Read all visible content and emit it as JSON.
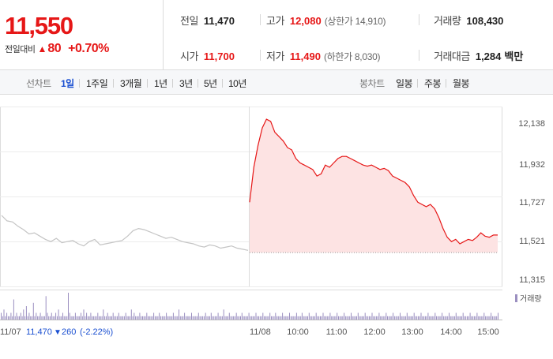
{
  "quote": {
    "price": "11,550",
    "change_label": "전일대비",
    "change_icon": "up-triangle-icon",
    "change_value": "80",
    "change_pct": "+0.70%"
  },
  "stats": {
    "prev_close": {
      "label": "전일",
      "value": "11,470"
    },
    "high": {
      "label": "고가",
      "value": "12,080",
      "sub": "(상한가 14,910)"
    },
    "volume": {
      "label": "거래량",
      "value": "108,430"
    },
    "open": {
      "label": "시가",
      "value": "11,700"
    },
    "low": {
      "label": "저가",
      "value": "11,490",
      "sub": "(하한가 8,030)"
    },
    "trade_amount": {
      "label": "거래대금",
      "value": "1,284",
      "unit": "백만"
    }
  },
  "toolbar": {
    "line_chart_label": "선차트",
    "periods": [
      "1일",
      "1주일",
      "3개월",
      "1년",
      "3년",
      "5년",
      "10년"
    ],
    "active_period": "1일",
    "candle_chart_label": "봉차트",
    "candles": [
      "일봉",
      "주봉",
      "월봉"
    ]
  },
  "colors": {
    "up": "#e61717",
    "down": "#1a4fd1",
    "prev_day_line": "#c4c4c4",
    "volume": "#9b8fc0",
    "fill": "#fde3e3"
  },
  "chart_data": {
    "type": "line",
    "y_ticks": [
      "12,138",
      "11,932",
      "11,727",
      "11,521",
      "11,315"
    ],
    "ylim": [
      11315,
      12138
    ],
    "grid": true,
    "prev_day": {
      "date": "11/07",
      "close": "11,470",
      "change_icon": "down-triangle-icon",
      "change": "260",
      "change_pct": "(-2.22%)",
      "values": [
        11640,
        11615,
        11610,
        11590,
        11575,
        11555,
        11560,
        11545,
        11530,
        11520,
        11535,
        11515,
        11520,
        11525,
        11510,
        11500,
        11520,
        11530,
        11505,
        11510,
        11515,
        11520,
        11525,
        11545,
        11570,
        11580,
        11575,
        11565,
        11555,
        11545,
        11535,
        11540,
        11530,
        11520,
        11515,
        11510,
        11500,
        11495,
        11505,
        11500,
        11490,
        11495,
        11500,
        11490,
        11485,
        11480
      ]
    },
    "today": {
      "date": "11/08",
      "x_labels": [
        "10:00",
        "11:00",
        "12:00",
        "13:00",
        "14:00",
        "15:00"
      ],
      "values": [
        11700,
        11860,
        11960,
        12040,
        12080,
        12070,
        12020,
        12000,
        11980,
        11950,
        11940,
        11900,
        11880,
        11870,
        11860,
        11850,
        11820,
        11830,
        11870,
        11860,
        11880,
        11900,
        11910,
        11910,
        11900,
        11890,
        11880,
        11870,
        11865,
        11870,
        11860,
        11850,
        11855,
        11845,
        11820,
        11810,
        11800,
        11790,
        11770,
        11730,
        11700,
        11690,
        11680,
        11690,
        11670,
        11630,
        11580,
        11540,
        11520,
        11530,
        11510,
        11520,
        11530,
        11525,
        11540,
        11560,
        11545,
        11540,
        11550,
        11550
      ],
      "baseline": 11470
    },
    "volume_label": "거래량",
    "volume": [
      2,
      1,
      3,
      1,
      2,
      1,
      1,
      2,
      1,
      6,
      1,
      2,
      1,
      1,
      2,
      1,
      3,
      1,
      4,
      1,
      2,
      1,
      1,
      5,
      1,
      2,
      1,
      1,
      2,
      1,
      1,
      1,
      7,
      2,
      1,
      1,
      2,
      1,
      1,
      2,
      1,
      3,
      1,
      1,
      2,
      1,
      1,
      1,
      8,
      2,
      1,
      1,
      1,
      2,
      1,
      1,
      1,
      2,
      1,
      3,
      1,
      2,
      1,
      1,
      2,
      1,
      1,
      1,
      1,
      2,
      1,
      1,
      1,
      3,
      1,
      1,
      2,
      1,
      1,
      1,
      2,
      1,
      1,
      1,
      2,
      1,
      1,
      1,
      1,
      2,
      1,
      1,
      1,
      3,
      1,
      2,
      1,
      1,
      1,
      2,
      1,
      1,
      1,
      1,
      2,
      1,
      1,
      1,
      1,
      2,
      1,
      1,
      1,
      2,
      1,
      1,
      1,
      1,
      2,
      1,
      1,
      1,
      1,
      2,
      1,
      1,
      1,
      3,
      1,
      1,
      1,
      2,
      1,
      1,
      1,
      1,
      2,
      1,
      1,
      1,
      1,
      2,
      1,
      1,
      1,
      1,
      2,
      1,
      1,
      1,
      2,
      1,
      1,
      1,
      1,
      2,
      1,
      1,
      1,
      3,
      1,
      1,
      1,
      2,
      1,
      1,
      1,
      1,
      2,
      1,
      1,
      1,
      2,
      1,
      1,
      1,
      1,
      2,
      1,
      1,
      1,
      1,
      2,
      1,
      1,
      1,
      1,
      2,
      1,
      1,
      1,
      1,
      2,
      1,
      1,
      1,
      2,
      1,
      1,
      1,
      1,
      2,
      1,
      1,
      1,
      1,
      2,
      1,
      1,
      1,
      1,
      2,
      1,
      1,
      1,
      2,
      1,
      1,
      1,
      1,
      2,
      1,
      1,
      1,
      1,
      2,
      1,
      1,
      1,
      1,
      2,
      1,
      1,
      1,
      1,
      2,
      1,
      1,
      1,
      1,
      2,
      1,
      1,
      1,
      1,
      2,
      1,
      1,
      1,
      1,
      2,
      1,
      1,
      1,
      1,
      2,
      1,
      1,
      1,
      1,
      2,
      1,
      1,
      1,
      1,
      2,
      1,
      1,
      1,
      1,
      2,
      1,
      1,
      1,
      1,
      2,
      1,
      1,
      1,
      1,
      2,
      1,
      1,
      1,
      1,
      2,
      1,
      1,
      1,
      1,
      2,
      1,
      1,
      1,
      1,
      2,
      1,
      1,
      1,
      1,
      2,
      1,
      1,
      1,
      1,
      2,
      1,
      1,
      1,
      1,
      2,
      1,
      1,
      1,
      1,
      2,
      1,
      1,
      1,
      1,
      2,
      1,
      1,
      1,
      1,
      2,
      1,
      1,
      1,
      1,
      2,
      1,
      1,
      1,
      1,
      2,
      1,
      1,
      1,
      1,
      2,
      1,
      1,
      1,
      1,
      2,
      1,
      1,
      1,
      1,
      2,
      1,
      1,
      1,
      1,
      2
    ]
  }
}
